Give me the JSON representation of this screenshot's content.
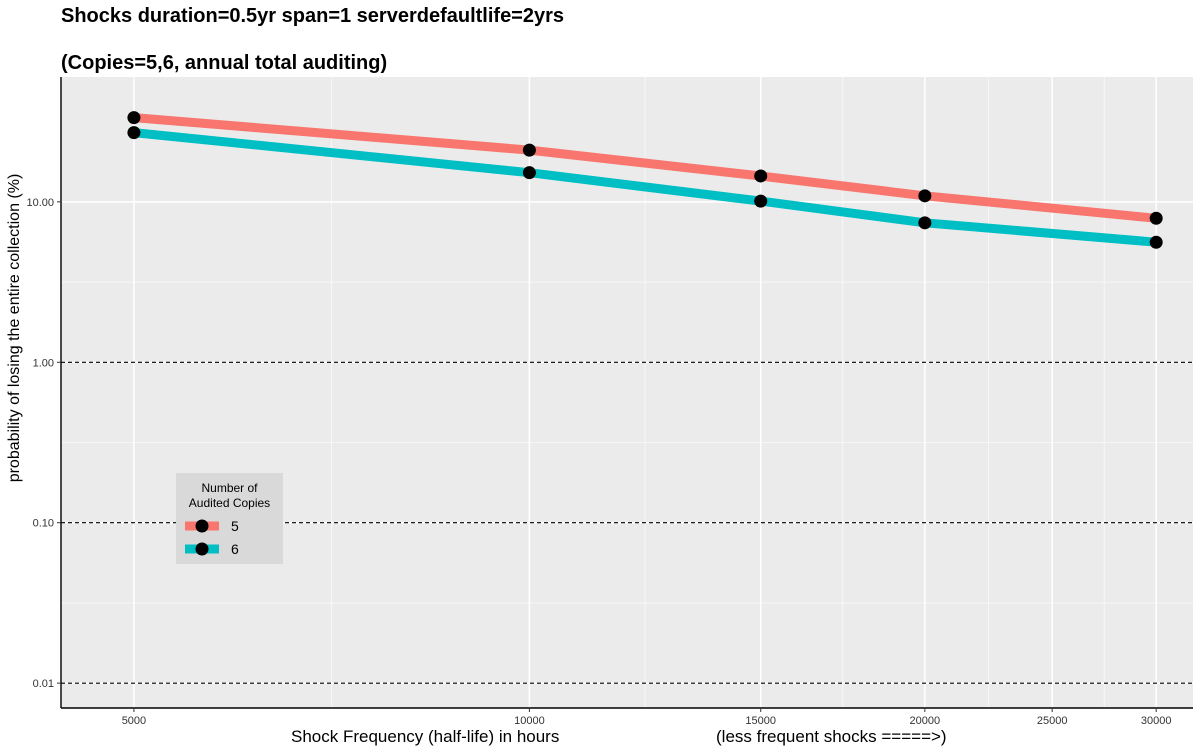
{
  "title_lines": [
    "Shocks duration=0.5yr span=1 serverdefaultlife=2yrs",
    "(Copies=5,6, annual total auditing)"
  ],
  "chart_data": {
    "type": "line",
    "title": "Shocks duration=0.5yr span=1 serverdefaultlife=2yrs (Copies=5,6, annual total auditing)",
    "xlabel": "Shock Frequency (half-life) in hours",
    "xlabel_right": "(less frequent shocks =====>)",
    "ylabel": "probability of losing the entire collection (%)",
    "x_scale": "log",
    "y_scale": "log",
    "xlim": [
      4400,
      32000
    ],
    "ylim": [
      0.007,
      60
    ],
    "x_ticks": [
      5000,
      10000,
      15000,
      20000,
      25000,
      30000
    ],
    "x_tick_labels": [
      "5000",
      "10000",
      "15000",
      "20000",
      "25000",
      "30000"
    ],
    "y_ticks": [
      0.01,
      0.1,
      1,
      10
    ],
    "y_tick_labels": [
      "0.01",
      "0.10",
      "1.00",
      "10.00"
    ],
    "reference_lines_y": [
      0.01,
      0.1,
      1
    ],
    "grid": true,
    "x": [
      5000,
      10000,
      15000,
      20000,
      30000
    ],
    "series": [
      {
        "name": "5",
        "color": "#F8766D",
        "values": [
          33.5,
          21.0,
          14.5,
          10.9,
          7.9
        ]
      },
      {
        "name": "6",
        "color": "#00BFC4",
        "values": [
          27.0,
          15.2,
          10.1,
          7.4,
          5.6
        ]
      }
    ],
    "legend": {
      "title_lines": [
        "Number of",
        "Audited Copies"
      ],
      "placement": "inside-lower-left"
    }
  },
  "colors": {
    "panel_bg": "#EBEBEB",
    "grid_major": "#FFFFFF",
    "reference_line": "#000000",
    "legend_bg": "#D9D9D9",
    "marker": "#000000"
  }
}
